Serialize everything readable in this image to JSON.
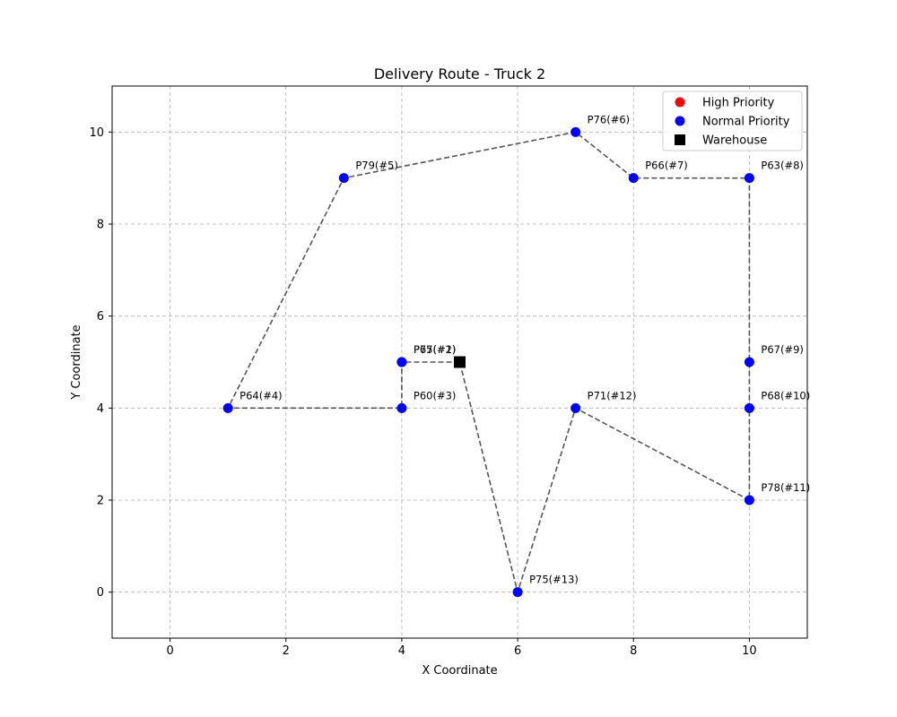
{
  "chart_data": {
    "type": "scatter",
    "title": "Delivery Route - Truck 2",
    "xlabel": "X Coordinate",
    "ylabel": "Y Coordinate",
    "xlim": [
      -1,
      11
    ],
    "ylim": [
      -1,
      11
    ],
    "xticks": [
      0,
      2,
      4,
      6,
      8,
      10
    ],
    "yticks": [
      0,
      2,
      4,
      6,
      8,
      10
    ],
    "grid": true,
    "legend_position": "top-right",
    "legend": [
      {
        "label": "High Priority",
        "color": "#ff0000",
        "marker": "circle"
      },
      {
        "label": "Normal Priority",
        "color": "#0000ff",
        "marker": "circle"
      },
      {
        "label": "Warehouse",
        "color": "#000000",
        "marker": "square"
      }
    ],
    "warehouse": {
      "x": 5,
      "y": 5
    },
    "route_color": "#555555",
    "stops": [
      {
        "label": "P65(#1)",
        "x": 4,
        "y": 5
      },
      {
        "label": "P77(#2)",
        "x": 4,
        "y": 5
      },
      {
        "label": "P60(#3)",
        "x": 4,
        "y": 4
      },
      {
        "label": "P64(#4)",
        "x": 1,
        "y": 4
      },
      {
        "label": "P79(#5)",
        "x": 3,
        "y": 9
      },
      {
        "label": "P76(#6)",
        "x": 7,
        "y": 10
      },
      {
        "label": "P66(#7)",
        "x": 8,
        "y": 9
      },
      {
        "label": "P63(#8)",
        "x": 10,
        "y": 9
      },
      {
        "label": "P67(#9)",
        "x": 10,
        "y": 5
      },
      {
        "label": "P68(#10)",
        "x": 10,
        "y": 4
      },
      {
        "label": "P78(#11)",
        "x": 10,
        "y": 2
      },
      {
        "label": "P71(#12)",
        "x": 7,
        "y": 4
      },
      {
        "label": "P75(#13)",
        "x": 6,
        "y": 0
      }
    ]
  }
}
